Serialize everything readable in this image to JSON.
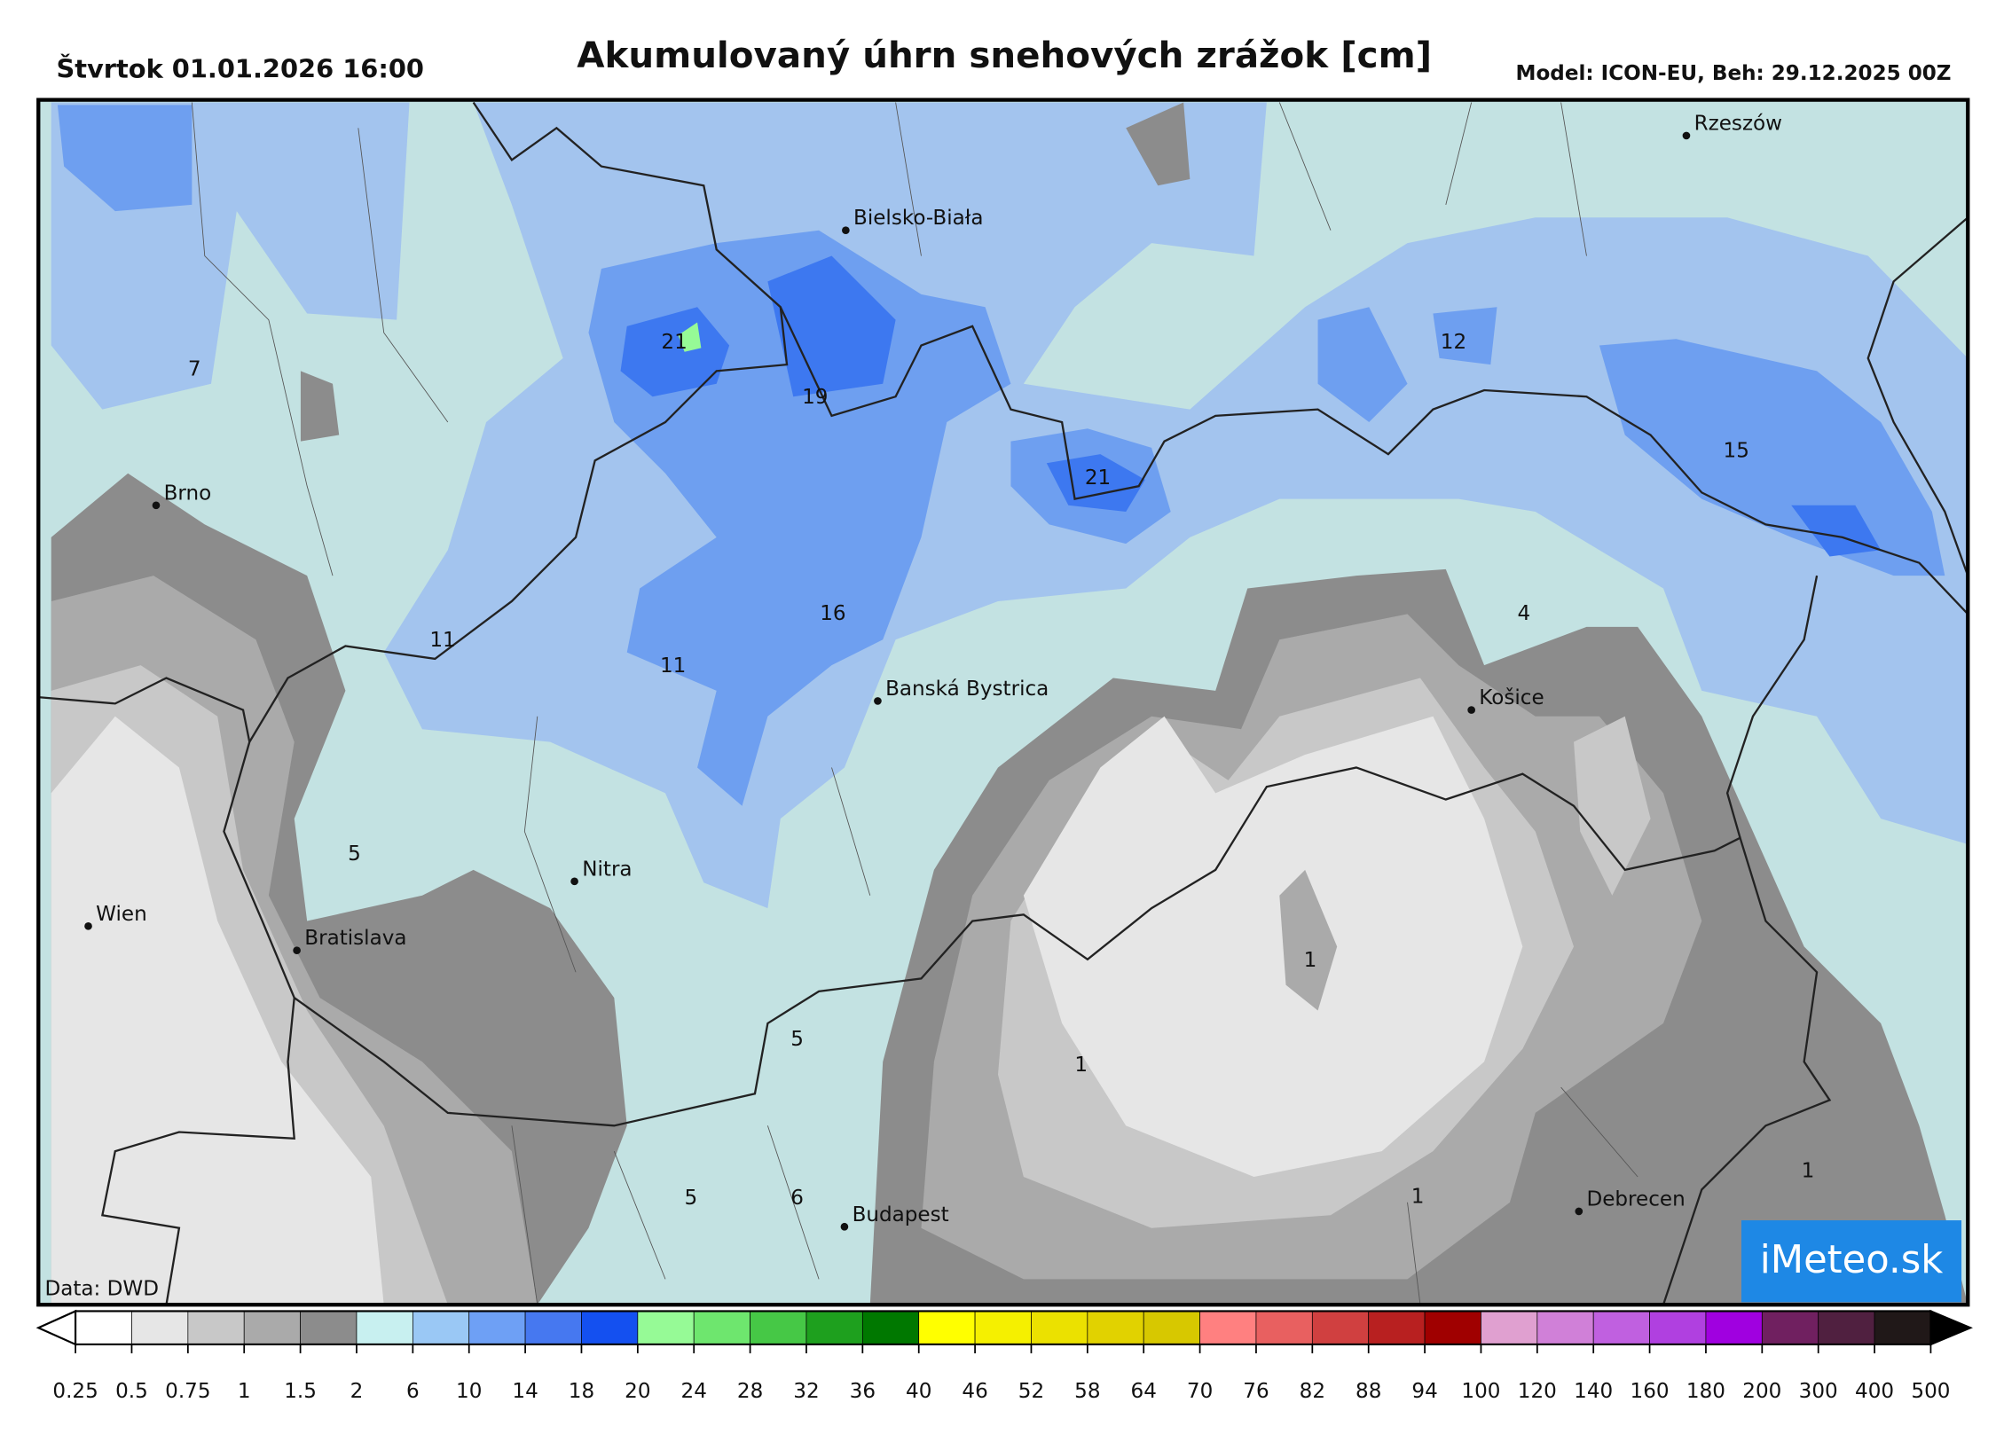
{
  "header": {
    "date": "Štvrtok 01.01.2026 16:00",
    "title": "Akumulovaný úhrn snehových zrážok [cm]",
    "model": "Model: ICON-EU, Beh: 29.12.2025 00Z"
  },
  "cities": [
    "Rzeszów",
    "Bielsko-Biała",
    "Brno",
    "Banská Bystrica",
    "Košice",
    "Nitra",
    "Wien",
    "Bratislava",
    "Budapest",
    "Debrecen"
  ],
  "map_labels": [
    21,
    19,
    21,
    12,
    15,
    7,
    11,
    11,
    16,
    4,
    5,
    5,
    5,
    6,
    1,
    1,
    1,
    1
  ],
  "source": "Data: DWD",
  "logo": "iMeteo.sk",
  "colorbar": {
    "labels": [
      0.25,
      0.5,
      0.75,
      1,
      1.5,
      2,
      6,
      10,
      14,
      18,
      20,
      24,
      28,
      32,
      36,
      40,
      46,
      52,
      58,
      64,
      70,
      76,
      82,
      88,
      94,
      100,
      120,
      140,
      160,
      180,
      200,
      300,
      400,
      500
    ],
    "colors": [
      "#ffffff",
      "#e6e6e6",
      "#c8c8c8",
      "#aaaaaa",
      "#8c8c8c",
      "#c8f0f0",
      "#9ac8f5",
      "#6ea0f5",
      "#4678f0",
      "#1450f0",
      "#96fa96",
      "#6ee66e",
      "#46c846",
      "#1ea01e",
      "#007800",
      "#ffff00",
      "#f5f000",
      "#ebe100",
      "#e1d200",
      "#d7c800",
      "#ff8080",
      "#e86060",
      "#d04040",
      "#b82020",
      "#a00000",
      "#e0a0d0",
      "#d080d8",
      "#c060e0",
      "#b040e0",
      "#a000e0",
      "#702060",
      "#502040",
      "#201818"
    ]
  }
}
